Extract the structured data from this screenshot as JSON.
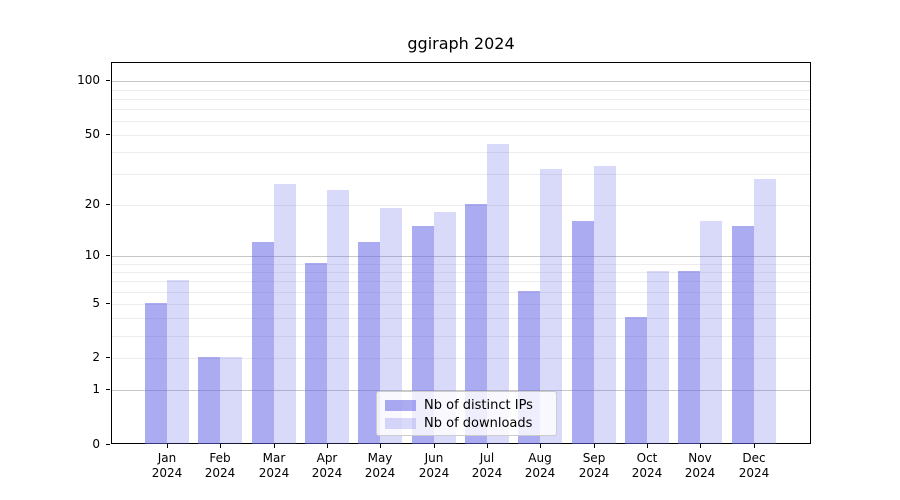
{
  "title": "ggiraph 2024",
  "colors": {
    "bar_base_rgb": "102,102,230",
    "ips_alpha": 0.55,
    "downloads_alpha": 0.25,
    "major_grid": "#c6c6c6",
    "minor_grid": "#ececec",
    "axis": "#000000",
    "legend_border": "#cccccc"
  },
  "chart_data": {
    "type": "bar",
    "title": "ggiraph 2024",
    "scale": "log1p",
    "categories": [
      "Jan",
      "Feb",
      "Mar",
      "Apr",
      "May",
      "Jun",
      "Jul",
      "Aug",
      "Sep",
      "Oct",
      "Nov",
      "Dec"
    ],
    "year_label": "2024",
    "series": [
      {
        "name": "Nb of distinct IPs",
        "values": [
          5,
          2,
          12,
          9,
          12,
          15,
          20,
          6,
          16,
          4,
          8,
          15
        ]
      },
      {
        "name": "Nb of downloads",
        "values": [
          7,
          2,
          26,
          24,
          19,
          18,
          44,
          32,
          33,
          8,
          16,
          28
        ]
      }
    ],
    "y_ticks": [
      0,
      1,
      2,
      5,
      10,
      20,
      50,
      100
    ],
    "ylim": [
      0,
      126
    ],
    "xlabel": "",
    "ylabel": "",
    "grid": "both",
    "legend_position": "lower center"
  },
  "legend": {
    "items": [
      {
        "label": "Nb of distinct IPs"
      },
      {
        "label": "Nb of downloads"
      }
    ]
  }
}
